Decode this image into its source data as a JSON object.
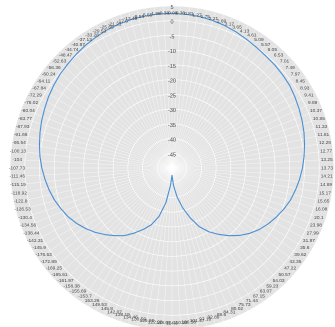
{
  "chart_data": {
    "type": "line",
    "polar": true,
    "title": "",
    "xlabel": "",
    "ylabel": "",
    "grid": true,
    "legend": "none",
    "colors": {
      "background": "#e3e3e3",
      "grid": "#ffffff",
      "line": "#4a8fd4",
      "label": "#444444"
    },
    "radial_range": [
      -50,
      5
    ],
    "radial_ticks": [
      5,
      0,
      -5,
      -10,
      -15,
      -20,
      -25,
      -30,
      -35,
      -40,
      -45
    ],
    "angle_labels": [
      "-0.08",
      "0.36",
      "0.81",
      "1.27",
      "1.75",
      "2.21",
      "2.69",
      "3.17",
      "3.65",
      "4.13",
      "4.61",
      "5.09",
      "5.57",
      "6.05",
      "6.53",
      "7.01",
      "7.49",
      "7.97",
      "8.45",
      "8.93",
      "9.41",
      "9.89",
      "10.37",
      "10.85",
      "11.33",
      "11.81",
      "12.29",
      "12.77",
      "13.25",
      "13.73",
      "14.21",
      "14.69",
      "15.17",
      "15.65",
      "16.08",
      "20.1",
      "23.98",
      "27.99",
      "31.87",
      "35.6",
      "39.62",
      "43.35",
      "47.22",
      "50.57",
      "54.03",
      "59.23",
      "63.07",
      "67.15",
      "71.44",
      "75.73",
      "80.02",
      "84.31",
      "88.6",
      "92.89",
      "97.18",
      "101.47",
      "106.58",
      "110.59",
      "114.8",
      "118.68",
      "122.98",
      "126.86",
      "130.59",
      "134.46",
      "138.19",
      "142.07",
      "145.8",
      "149.53",
      "153.26",
      "-153.7",
      "-155.69",
      "-158.38",
      "-161.97",
      "-165.61",
      "-169.25",
      "-172.89",
      "-176.53",
      "-145.9",
      "-142.31",
      "-138.44",
      "-134.56",
      "-130.4",
      "-126.53",
      "-122.8",
      "-118.92",
      "-115.19",
      "-111.46",
      "-107.73",
      "-104",
      "-100.13",
      "-95.54",
      "-91.66",
      "-87.93",
      "-83.77",
      "-80.04",
      "-76.02",
      "-72.29",
      "-67.84",
      "-64.11",
      "-60.24",
      "-56.36",
      "-52.63",
      "-48.47",
      "-44.74",
      "-40.87",
      "-37.13",
      "-33.26",
      "-29.53",
      "-25.65",
      "-21.21",
      "-17.6",
      "-13.49",
      "-9.54",
      "-5.59",
      "-1.98",
      "-0.38"
    ],
    "series": [
      {
        "values": [
          [
            0,
            2.5
          ],
          [
            5,
            2.4
          ],
          [
            10,
            2.3
          ],
          [
            15,
            2.0
          ],
          [
            20,
            1.6
          ],
          [
            25,
            1.1
          ],
          [
            30,
            0.5
          ],
          [
            35,
            0.0
          ],
          [
            40,
            -0.4
          ],
          [
            45,
            -0.6
          ],
          [
            50,
            -0.9
          ],
          [
            55,
            -1.2
          ],
          [
            60,
            -1.8
          ],
          [
            65,
            -2.4
          ],
          [
            70,
            -3.0
          ],
          [
            75,
            -3.6
          ],
          [
            80,
            -4.3
          ],
          [
            85,
            -5.0
          ],
          [
            90,
            -5.7
          ],
          [
            95,
            -6.5
          ],
          [
            100,
            -7.4
          ],
          [
            105,
            -8.3
          ],
          [
            110,
            -9.5
          ],
          [
            115,
            -10.8
          ],
          [
            120,
            -12.2
          ],
          [
            125,
            -13.7
          ],
          [
            130,
            -15.5
          ],
          [
            135,
            -17.6
          ],
          [
            140,
            -20.0
          ],
          [
            145,
            -22.5
          ],
          [
            150,
            -25.0
          ],
          [
            155,
            -28.0
          ],
          [
            160,
            -32.0
          ],
          [
            165,
            -36.0
          ],
          [
            170,
            -40.0
          ],
          [
            175,
            -44.0
          ],
          [
            180,
            -47.5
          ],
          [
            185,
            -44.0
          ],
          [
            190,
            -38.0
          ],
          [
            195,
            -33.0
          ],
          [
            200,
            -29.5
          ],
          [
            205,
            -27.0
          ],
          [
            210,
            -24.5
          ],
          [
            215,
            -22.0
          ],
          [
            220,
            -20.0
          ],
          [
            225,
            -18.0
          ],
          [
            230,
            -16.0
          ],
          [
            235,
            -14.2
          ],
          [
            240,
            -12.5
          ],
          [
            245,
            -11.0
          ],
          [
            250,
            -9.8
          ],
          [
            255,
            -8.6
          ],
          [
            260,
            -7.6
          ],
          [
            265,
            -6.7
          ],
          [
            270,
            -5.8
          ],
          [
            275,
            -5.0
          ],
          [
            280,
            -4.3
          ],
          [
            285,
            -3.6
          ],
          [
            290,
            -2.9
          ],
          [
            295,
            -2.3
          ],
          [
            300,
            -1.6
          ],
          [
            305,
            -1.0
          ],
          [
            310,
            -0.4
          ],
          [
            315,
            0.0
          ],
          [
            320,
            0.5
          ],
          [
            325,
            1.0
          ],
          [
            330,
            1.4
          ],
          [
            335,
            1.8
          ],
          [
            340,
            2.1
          ],
          [
            345,
            2.3
          ],
          [
            350,
            2.4
          ],
          [
            355,
            2.5
          ],
          [
            360,
            2.5
          ]
        ]
      }
    ]
  }
}
